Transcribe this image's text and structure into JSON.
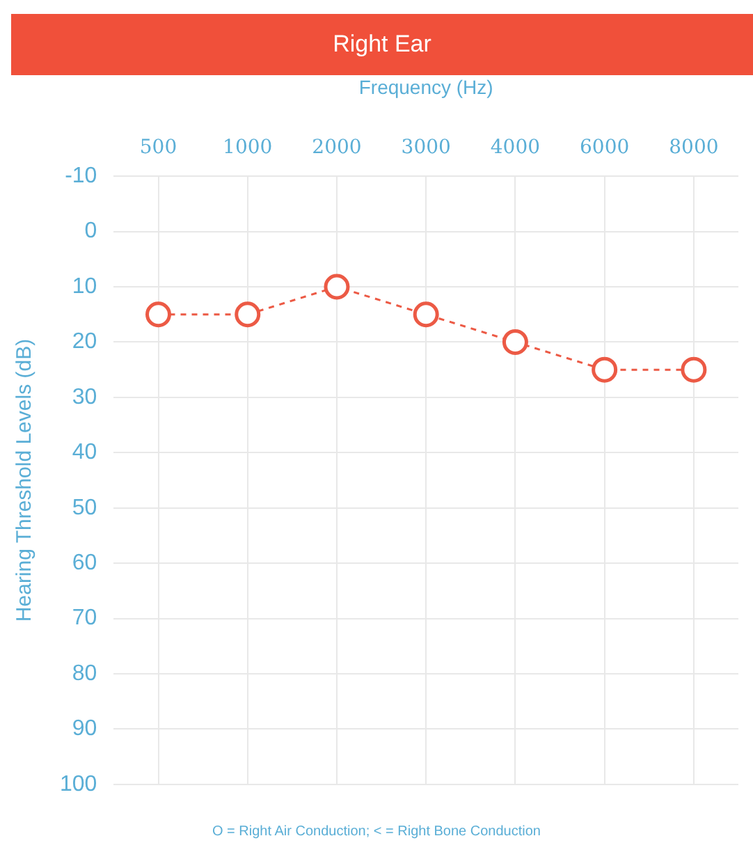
{
  "chart_data": {
    "type": "line",
    "title": "Right Ear",
    "xlabel": "Frequency (Hz)",
    "ylabel": "Hearing Threshold Levels (dB)",
    "categories": [
      "500",
      "1000",
      "2000",
      "3000",
      "4000",
      "6000",
      "8000"
    ],
    "series": [
      {
        "color": "#ec5a45",
        "values": [
          15,
          15,
          10,
          15,
          20,
          25,
          25
        ]
      }
    ],
    "ylim": [
      100,
      -10
    ],
    "yticks": [
      -10,
      0,
      10,
      20,
      30,
      40,
      50,
      60,
      70,
      80,
      90,
      100
    ],
    "grid": true,
    "legend": false,
    "marker": "circle",
    "line_style": "dashed",
    "annotations": [
      "O = Right Air Conduction;  < = Right Bone Conduction"
    ]
  }
}
